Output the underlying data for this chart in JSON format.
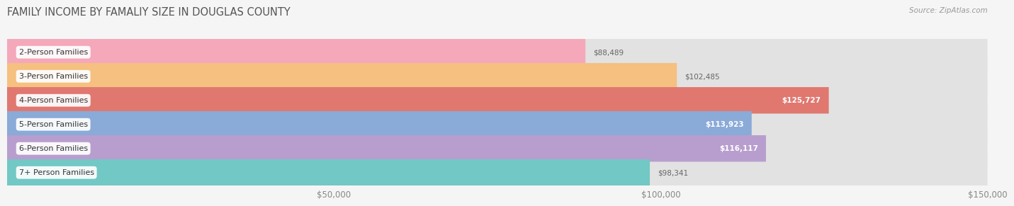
{
  "title": "FAMILY INCOME BY FAMALIY SIZE IN DOUGLAS COUNTY",
  "source": "Source: ZipAtlas.com",
  "categories": [
    "2-Person Families",
    "3-Person Families",
    "4-Person Families",
    "5-Person Families",
    "6-Person Families",
    "7+ Person Families"
  ],
  "values": [
    88489,
    102485,
    125727,
    113923,
    116117,
    98341
  ],
  "bar_colors": [
    "#f4a8ba",
    "#f5c080",
    "#e07870",
    "#8aaad8",
    "#b89ece",
    "#72c8c4"
  ],
  "label_text_colors": [
    "#555555",
    "#555555",
    "#555555",
    "#555555",
    "#555555",
    "#555555"
  ],
  "value_colors": [
    "#888888",
    "#888888",
    "#ffffff",
    "#ffffff",
    "#ffffff",
    "#888888"
  ],
  "bg_color": "#f5f5f5",
  "bar_bg_color": "#e2e2e2",
  "xlim": [
    0,
    150000
  ],
  "xticks": [
    50000,
    100000,
    150000
  ],
  "xtick_labels": [
    "$50,000",
    "$100,000",
    "$150,000"
  ],
  "title_fontsize": 10.5,
  "label_fontsize": 8.0,
  "value_fontsize": 7.5,
  "bar_height": 0.55
}
